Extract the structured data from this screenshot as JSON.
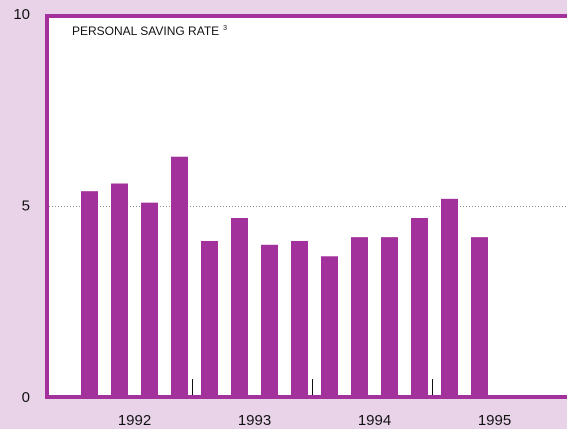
{
  "chart_data": {
    "type": "bar",
    "title": "PERSONAL SAVING RATE",
    "title_note": "3",
    "categories": [
      null,
      null,
      null,
      null,
      null,
      null,
      null,
      null,
      null,
      null,
      null,
      null,
      null,
      null
    ],
    "group_labels": [
      "1992",
      "1993",
      "1994",
      "1995"
    ],
    "values": [
      5.4,
      5.6,
      5.1,
      6.3,
      4.1,
      4.7,
      4.0,
      4.1,
      3.7,
      4.2,
      4.2,
      4.7,
      5.2,
      4.2
    ],
    "color": "#a3319b",
    "ylim": [
      0,
      10
    ],
    "yticks": [
      0,
      5,
      10
    ],
    "grid": true
  }
}
